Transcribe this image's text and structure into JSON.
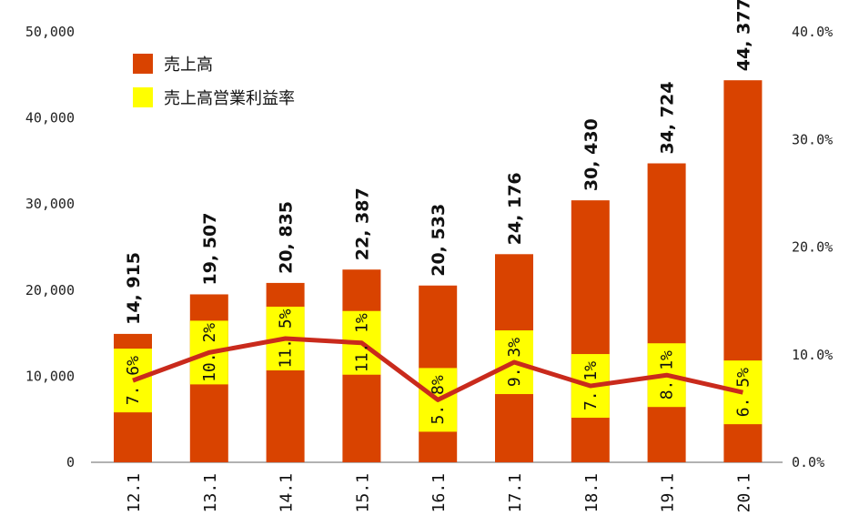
{
  "chart_data": {
    "type": "bar",
    "categories": [
      "12.1",
      "13.1",
      "14.1",
      "15.1",
      "16.1",
      "17.1",
      "18.1",
      "19.1",
      "20.1"
    ],
    "series": [
      {
        "name": "売上高",
        "type": "bar",
        "axis": "left",
        "values": [
          14915,
          19507,
          20835,
          22387,
          20533,
          24176,
          30430,
          34724,
          44377
        ],
        "labels": [
          "14, 915",
          "19, 507",
          "20, 835",
          "22, 387",
          "20, 533",
          "24, 176",
          "30, 430",
          "34, 724",
          "44, 377"
        ],
        "color": "#D94300"
      },
      {
        "name": "売上高営業利益率",
        "type": "line",
        "axis": "right",
        "values": [
          7.6,
          10.2,
          11.5,
          11.1,
          5.8,
          9.3,
          7.1,
          8.1,
          6.5
        ],
        "labels": [
          "7. 6%",
          "10. 2%",
          "11. 5%",
          "11. 1%",
          "5. 8%",
          "9. 3%",
          "7. 1%",
          "8. 1%",
          "6. 5%"
        ],
        "color": "#FFFF00",
        "line_color": "#C92A1C"
      }
    ],
    "y_left": {
      "ticks": [
        "0",
        "10,000",
        "20,000",
        "30,000",
        "40,000",
        "50,000"
      ],
      "ylim": [
        0,
        50000
      ]
    },
    "y_right": {
      "ticks": [
        "0.0%",
        "10.0%",
        "20.0%",
        "30.0%",
        "40.0%"
      ],
      "ylim": [
        0,
        40
      ]
    },
    "legend_position": "top-left",
    "grid": false
  }
}
